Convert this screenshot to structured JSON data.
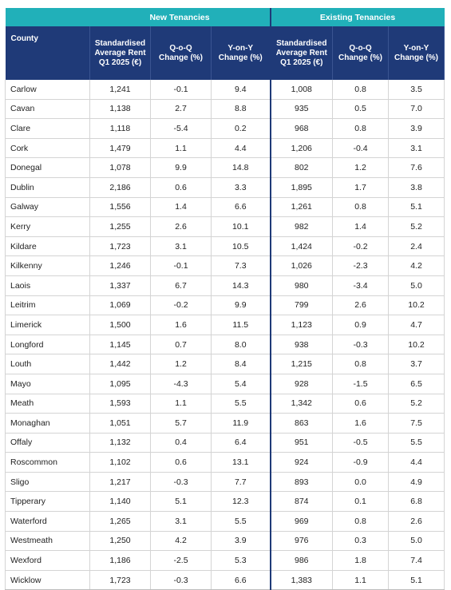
{
  "groups": {
    "new": "New Tenancies",
    "existing": "Existing Tenancies"
  },
  "headers": {
    "county": "County",
    "rent": [
      "Standardised",
      "Average Rent",
      "Q1 2025 (€)"
    ],
    "qoq": [
      "Q-o-Q",
      "Change (%)"
    ],
    "yoy": [
      "Y-on-Y",
      "Change (%)"
    ]
  },
  "rows": [
    {
      "county": "Carlow",
      "new_rent": "1,241",
      "new_qoq": "-0.1",
      "new_yoy": "9.4",
      "ex_rent": "1,008",
      "ex_qoq": "0.8",
      "ex_yoy": "3.5"
    },
    {
      "county": "Cavan",
      "new_rent": "1,138",
      "new_qoq": "2.7",
      "new_yoy": "8.8",
      "ex_rent": "935",
      "ex_qoq": "0.5",
      "ex_yoy": "7.0"
    },
    {
      "county": "Clare",
      "new_rent": "1,118",
      "new_qoq": "-5.4",
      "new_yoy": "0.2",
      "ex_rent": "968",
      "ex_qoq": "0.8",
      "ex_yoy": "3.9"
    },
    {
      "county": "Cork",
      "new_rent": "1,479",
      "new_qoq": "1.1",
      "new_yoy": "4.4",
      "ex_rent": "1,206",
      "ex_qoq": "-0.4",
      "ex_yoy": "3.1"
    },
    {
      "county": "Donegal",
      "new_rent": "1,078",
      "new_qoq": "9.9",
      "new_yoy": "14.8",
      "ex_rent": "802",
      "ex_qoq": "1.2",
      "ex_yoy": "7.6"
    },
    {
      "county": "Dublin",
      "new_rent": "2,186",
      "new_qoq": "0.6",
      "new_yoy": "3.3",
      "ex_rent": "1,895",
      "ex_qoq": "1.7",
      "ex_yoy": "3.8"
    },
    {
      "county": "Galway",
      "new_rent": "1,556",
      "new_qoq": "1.4",
      "new_yoy": "6.6",
      "ex_rent": "1,261",
      "ex_qoq": "0.8",
      "ex_yoy": "5.1"
    },
    {
      "county": "Kerry",
      "new_rent": "1,255",
      "new_qoq": "2.6",
      "new_yoy": "10.1",
      "ex_rent": "982",
      "ex_qoq": "1.4",
      "ex_yoy": "5.2"
    },
    {
      "county": "Kildare",
      "new_rent": "1,723",
      "new_qoq": "3.1",
      "new_yoy": "10.5",
      "ex_rent": "1,424",
      "ex_qoq": "-0.2",
      "ex_yoy": "2.4"
    },
    {
      "county": "Kilkenny",
      "new_rent": "1,246",
      "new_qoq": "-0.1",
      "new_yoy": "7.3",
      "ex_rent": "1,026",
      "ex_qoq": "-2.3",
      "ex_yoy": "4.2"
    },
    {
      "county": "Laois",
      "new_rent": "1,337",
      "new_qoq": "6.7",
      "new_yoy": "14.3",
      "ex_rent": "980",
      "ex_qoq": "-3.4",
      "ex_yoy": "5.0"
    },
    {
      "county": "Leitrim",
      "new_rent": "1,069",
      "new_qoq": "-0.2",
      "new_yoy": "9.9",
      "ex_rent": "799",
      "ex_qoq": "2.6",
      "ex_yoy": "10.2"
    },
    {
      "county": "Limerick",
      "new_rent": "1,500",
      "new_qoq": "1.6",
      "new_yoy": "11.5",
      "ex_rent": "1,123",
      "ex_qoq": "0.9",
      "ex_yoy": "4.7"
    },
    {
      "county": "Longford",
      "new_rent": "1,145",
      "new_qoq": "0.7",
      "new_yoy": "8.0",
      "ex_rent": "938",
      "ex_qoq": "-0.3",
      "ex_yoy": "10.2"
    },
    {
      "county": "Louth",
      "new_rent": "1,442",
      "new_qoq": "1.2",
      "new_yoy": "8.4",
      "ex_rent": "1,215",
      "ex_qoq": "0.8",
      "ex_yoy": "3.7"
    },
    {
      "county": "Mayo",
      "new_rent": "1,095",
      "new_qoq": "-4.3",
      "new_yoy": "5.4",
      "ex_rent": "928",
      "ex_qoq": "-1.5",
      "ex_yoy": "6.5"
    },
    {
      "county": "Meath",
      "new_rent": "1,593",
      "new_qoq": "1.1",
      "new_yoy": "5.5",
      "ex_rent": "1,342",
      "ex_qoq": "0.6",
      "ex_yoy": "5.2"
    },
    {
      "county": "Monaghan",
      "new_rent": "1,051",
      "new_qoq": "5.7",
      "new_yoy": "11.9",
      "ex_rent": "863",
      "ex_qoq": "1.6",
      "ex_yoy": "7.5"
    },
    {
      "county": "Offaly",
      "new_rent": "1,132",
      "new_qoq": "0.4",
      "new_yoy": "6.4",
      "ex_rent": "951",
      "ex_qoq": "-0.5",
      "ex_yoy": "5.5"
    },
    {
      "county": "Roscommon",
      "new_rent": "1,102",
      "new_qoq": "0.6",
      "new_yoy": "13.1",
      "ex_rent": "924",
      "ex_qoq": "-0.9",
      "ex_yoy": "4.4"
    },
    {
      "county": "Sligo",
      "new_rent": "1,217",
      "new_qoq": "-0.3",
      "new_yoy": "7.7",
      "ex_rent": "893",
      "ex_qoq": "0.0",
      "ex_yoy": "4.9"
    },
    {
      "county": "Tipperary",
      "new_rent": "1,140",
      "new_qoq": "5.1",
      "new_yoy": "12.3",
      "ex_rent": "874",
      "ex_qoq": "0.1",
      "ex_yoy": "6.8"
    },
    {
      "county": "Waterford",
      "new_rent": "1,265",
      "new_qoq": "3.1",
      "new_yoy": "5.5",
      "ex_rent": "969",
      "ex_qoq": "0.8",
      "ex_yoy": "2.6"
    },
    {
      "county": "Westmeath",
      "new_rent": "1,250",
      "new_qoq": "4.2",
      "new_yoy": "3.9",
      "ex_rent": "976",
      "ex_qoq": "0.3",
      "ex_yoy": "5.0"
    },
    {
      "county": "Wexford",
      "new_rent": "1,186",
      "new_qoq": "-2.5",
      "new_yoy": "5.3",
      "ex_rent": "986",
      "ex_qoq": "1.8",
      "ex_yoy": "7.4"
    },
    {
      "county": "Wicklow",
      "new_rent": "1,723",
      "new_qoq": "-0.3",
      "new_yoy": "6.6",
      "ex_rent": "1,383",
      "ex_qoq": "1.1",
      "ex_yoy": "5.1"
    }
  ]
}
